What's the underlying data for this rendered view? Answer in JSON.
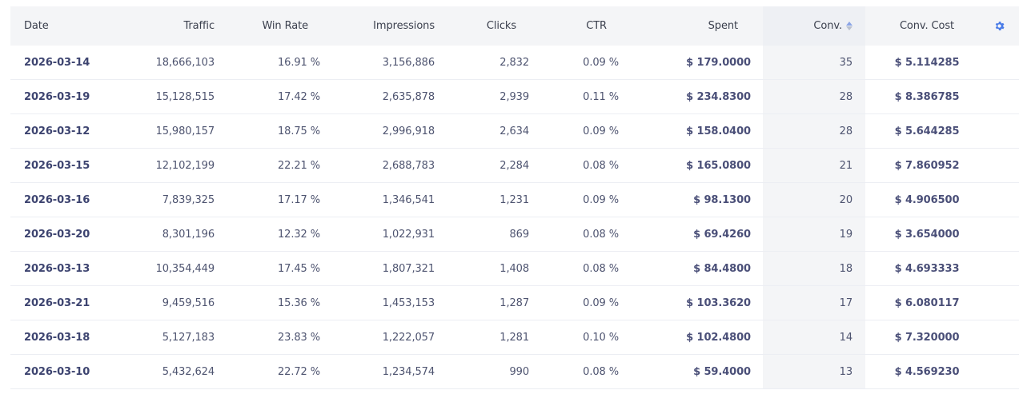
{
  "table": {
    "headers": {
      "date": "Date",
      "traffic": "Traffic",
      "win_rate": "Win Rate",
      "impressions": "Impressions",
      "clicks": "Clicks",
      "ctr": "CTR",
      "spent": "Spent",
      "conv": "Conv.",
      "conv_cost": "Conv. Cost"
    },
    "sort": {
      "column": "conv",
      "direction": "desc"
    },
    "settings_icon": "gear-icon",
    "accent_color": "#4a7ce8",
    "rows": [
      {
        "date": "2026-03-14",
        "traffic": "18,666,103",
        "win_rate": "16.91 %",
        "impressions": "3,156,886",
        "clicks": "2,832",
        "ctr": "0.09 %",
        "spent": "$ 179.0000",
        "conv": "35",
        "conv_cost": "$ 5.114285"
      },
      {
        "date": "2026-03-19",
        "traffic": "15,128,515",
        "win_rate": "17.42 %",
        "impressions": "2,635,878",
        "clicks": "2,939",
        "ctr": "0.11 %",
        "spent": "$ 234.8300",
        "conv": "28",
        "conv_cost": "$ 8.386785"
      },
      {
        "date": "2026-03-12",
        "traffic": "15,980,157",
        "win_rate": "18.75 %",
        "impressions": "2,996,918",
        "clicks": "2,634",
        "ctr": "0.09 %",
        "spent": "$ 158.0400",
        "conv": "28",
        "conv_cost": "$ 5.644285"
      },
      {
        "date": "2026-03-15",
        "traffic": "12,102,199",
        "win_rate": "22.21 %",
        "impressions": "2,688,783",
        "clicks": "2,284",
        "ctr": "0.08 %",
        "spent": "$ 165.0800",
        "conv": "21",
        "conv_cost": "$ 7.860952"
      },
      {
        "date": "2026-03-16",
        "traffic": "7,839,325",
        "win_rate": "17.17 %",
        "impressions": "1,346,541",
        "clicks": "1,231",
        "ctr": "0.09 %",
        "spent": "$ 98.1300",
        "conv": "20",
        "conv_cost": "$ 4.906500"
      },
      {
        "date": "2026-03-20",
        "traffic": "8,301,196",
        "win_rate": "12.32 %",
        "impressions": "1,022,931",
        "clicks": "869",
        "ctr": "0.08 %",
        "spent": "$ 69.4260",
        "conv": "19",
        "conv_cost": "$ 3.654000"
      },
      {
        "date": "2026-03-13",
        "traffic": "10,354,449",
        "win_rate": "17.45 %",
        "impressions": "1,807,321",
        "clicks": "1,408",
        "ctr": "0.08 %",
        "spent": "$ 84.4800",
        "conv": "18",
        "conv_cost": "$ 4.693333"
      },
      {
        "date": "2026-03-21",
        "traffic": "9,459,516",
        "win_rate": "15.36 %",
        "impressions": "1,453,153",
        "clicks": "1,287",
        "ctr": "0.09 %",
        "spent": "$ 103.3620",
        "conv": "17",
        "conv_cost": "$ 6.080117"
      },
      {
        "date": "2026-03-18",
        "traffic": "5,127,183",
        "win_rate": "23.83 %",
        "impressions": "1,222,057",
        "clicks": "1,281",
        "ctr": "0.10 %",
        "spent": "$ 102.4800",
        "conv": "14",
        "conv_cost": "$ 7.320000"
      },
      {
        "date": "2026-03-10",
        "traffic": "5,432,624",
        "win_rate": "22.72 %",
        "impressions": "1,234,574",
        "clicks": "990",
        "ctr": "0.08 %",
        "spent": "$ 59.4000",
        "conv": "13",
        "conv_cost": "$ 4.569230"
      }
    ]
  }
}
